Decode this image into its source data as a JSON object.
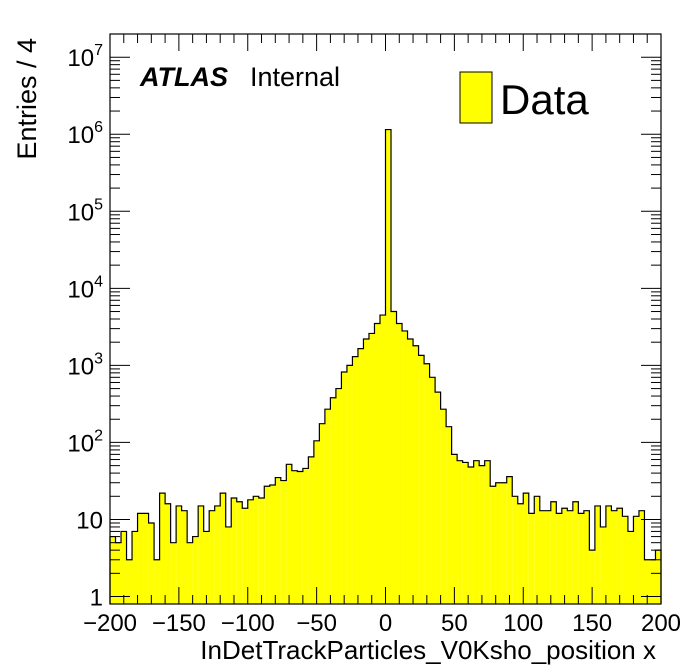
{
  "chart_data": {
    "type": "bar",
    "title": "",
    "xlabel": "InDetTrackParticles_V0Ksho_position x",
    "ylabel": "Entries / 4",
    "xlim": [
      -200,
      200
    ],
    "ylim": [
      0.8,
      20000000
    ],
    "log_y": true,
    "bin_width": 4,
    "x_ticks": [
      "−200",
      "−150",
      "−100",
      "−50",
      "0",
      "50",
      "100",
      "150",
      "200"
    ],
    "y_ticks": [
      {
        "base": "1",
        "exp": ""
      },
      {
        "base": "10",
        "exp": ""
      },
      {
        "base": "10",
        "exp": "2"
      },
      {
        "base": "10",
        "exp": "3"
      },
      {
        "base": "10",
        "exp": "4"
      },
      {
        "base": "10",
        "exp": "5"
      },
      {
        "base": "10",
        "exp": "6"
      },
      {
        "base": "10",
        "exp": "7"
      }
    ],
    "atlas_label": "ATLAS",
    "atlas_sublabel": "Internal",
    "legend": "top-right",
    "series": [
      {
        "name": "Data",
        "color": "#ffff00",
        "edge_color": "#000000",
        "x": [
          -198,
          -194,
          -190,
          -186,
          -182,
          -178,
          -174,
          -170,
          -166,
          -162,
          -158,
          -154,
          -150,
          -146,
          -142,
          -138,
          -134,
          -130,
          -126,
          -122,
          -118,
          -114,
          -110,
          -106,
          -102,
          -98,
          -94,
          -90,
          -86,
          -82,
          -78,
          -74,
          -70,
          -66,
          -62,
          -58,
          -54,
          -50,
          -46,
          -42,
          -38,
          -34,
          -30,
          -26,
          -22,
          -18,
          -14,
          -10,
          -6,
          -2,
          2,
          6,
          10,
          14,
          18,
          22,
          26,
          30,
          34,
          38,
          42,
          46,
          50,
          54,
          58,
          62,
          66,
          70,
          74,
          78,
          82,
          86,
          90,
          94,
          98,
          102,
          106,
          110,
          114,
          118,
          122,
          126,
          130,
          134,
          138,
          142,
          146,
          150,
          154,
          158,
          162,
          166,
          170,
          174,
          178,
          182,
          186,
          190,
          194,
          198
        ],
        "values": [
          6,
          5,
          7,
          3,
          7,
          12,
          12,
          9,
          3,
          22,
          16,
          5,
          15,
          13,
          5,
          6,
          15,
          7,
          13,
          15,
          22,
          8,
          19,
          17,
          14,
          18,
          20,
          19,
          27,
          28,
          35,
          32,
          52,
          43,
          42,
          46,
          65,
          105,
          175,
          270,
          380,
          500,
          820,
          1000,
          1300,
          1650,
          2200,
          2600,
          3500,
          4500,
          1150000,
          5000,
          3500,
          2800,
          2200,
          1800,
          1350,
          1050,
          700,
          450,
          270,
          160,
          70,
          58,
          55,
          48,
          58,
          50,
          58,
          27,
          30,
          30,
          36,
          20,
          16,
          22,
          12,
          20,
          13,
          13,
          17,
          12,
          14,
          13,
          17,
          12,
          13,
          4,
          15,
          8,
          15,
          13,
          14,
          11,
          7,
          11,
          13,
          3,
          3,
          4
        ]
      }
    ]
  }
}
